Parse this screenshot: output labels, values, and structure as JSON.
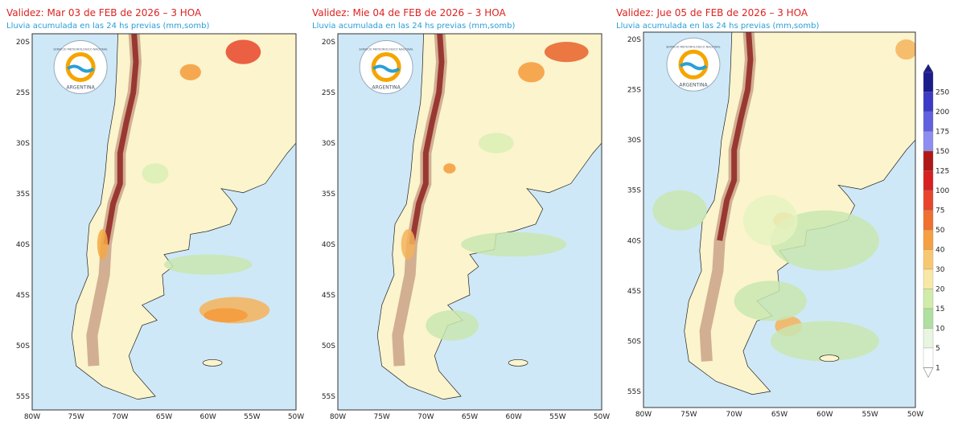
{
  "panels": [
    {
      "title": "Validez: Mar 03 de FEB de 2026 – 3 HOA",
      "subtitle": "Lluvia acumulada en las 24 hs previas (mm,somb)",
      "lat_labels": [
        "20S",
        "25S",
        "30S",
        "35S",
        "40S",
        "45S",
        "50S",
        "55S"
      ],
      "lon_labels": [
        "80W",
        "75W",
        "70W",
        "65W",
        "60W",
        "55W",
        "50W"
      ]
    },
    {
      "title": "Validez: Mie 04 de FEB de 2026 – 3 HOA",
      "subtitle": "Lluvia acumulada en las 24 hs previas (mm,somb)",
      "lat_labels": [
        "20S",
        "25S",
        "30S",
        "35S",
        "40S",
        "45S",
        "50S",
        "55S"
      ],
      "lon_labels": [
        "80W",
        "75W",
        "70W",
        "65W",
        "60W",
        "55W",
        "50W"
      ]
    },
    {
      "title": "Validez: Jue 05 de FEB de 2026 – 3 HOA",
      "subtitle": "Lluvia acumulada en las 24 hs previas (mm,somb)",
      "lat_labels": [
        "20S",
        "25S",
        "30S",
        "35S",
        "40S",
        "45S",
        "50S",
        "55S"
      ],
      "lon_labels": [
        "80W",
        "75W",
        "70W",
        "65W",
        "60W",
        "55W",
        "50W"
      ]
    }
  ],
  "logo": {
    "top": "SERVICIO METEOROLOGICO NACIONAL",
    "bottom": "ARGENTINA"
  },
  "colorbar": {
    "labels": [
      "250",
      "200",
      "175",
      "150",
      "125",
      "100",
      "75",
      "50",
      "40",
      "30",
      "20",
      "15",
      "10",
      "5",
      "1"
    ]
  }
}
